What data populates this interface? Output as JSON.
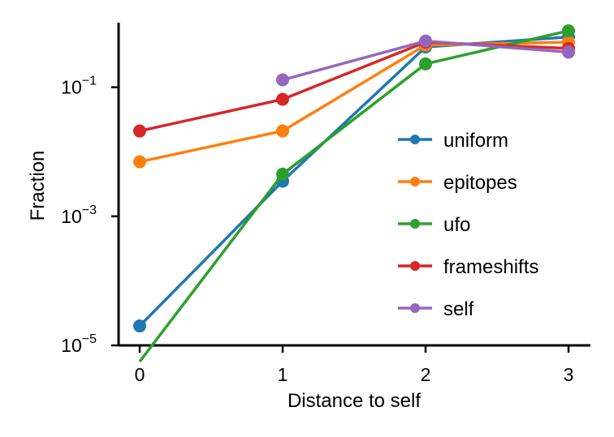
{
  "chart_data": {
    "type": "line",
    "xlabel": "Distance to self",
    "ylabel": "Fraction",
    "yscale": "log",
    "ylim": [
      1e-05,
      1
    ],
    "xlim": [
      -0.15,
      3.15
    ],
    "x_ticks": [
      {
        "value": 0,
        "label": "0"
      },
      {
        "value": 1,
        "label": "1"
      },
      {
        "value": 2,
        "label": "2"
      },
      {
        "value": 3,
        "label": "3"
      }
    ],
    "y_ticks": [
      {
        "value": 0.1,
        "base": "10",
        "exp": "−1"
      },
      {
        "value": 0.001,
        "base": "10",
        "exp": "−3"
      },
      {
        "value": 1e-05,
        "base": "10",
        "exp": "−5"
      }
    ],
    "grid": false,
    "legend_position": "right",
    "series": [
      {
        "name": "uniform",
        "color": "#1f77b4",
        "x": [
          0,
          1,
          2,
          3
        ],
        "y": [
          2e-05,
          0.0035,
          0.42,
          0.6
        ]
      },
      {
        "name": "epitopes",
        "color": "#ff7f0e",
        "x": [
          0,
          1,
          2,
          3
        ],
        "y": [
          0.007,
          0.021,
          0.45,
          0.5
        ]
      },
      {
        "name": "ufo",
        "color": "#2ca02c",
        "x": [
          0,
          1,
          2,
          3
        ],
        "y": [
          0,
          0.0045,
          0.23,
          0.75
        ]
      },
      {
        "name": "frameshifts",
        "color": "#d62728",
        "x": [
          0,
          1,
          2,
          3
        ],
        "y": [
          0.021,
          0.065,
          0.5,
          0.4
        ]
      },
      {
        "name": "self",
        "color": "#9467bd",
        "x": [
          1,
          2,
          3
        ],
        "y": [
          0.13,
          0.52,
          0.35
        ]
      }
    ]
  }
}
